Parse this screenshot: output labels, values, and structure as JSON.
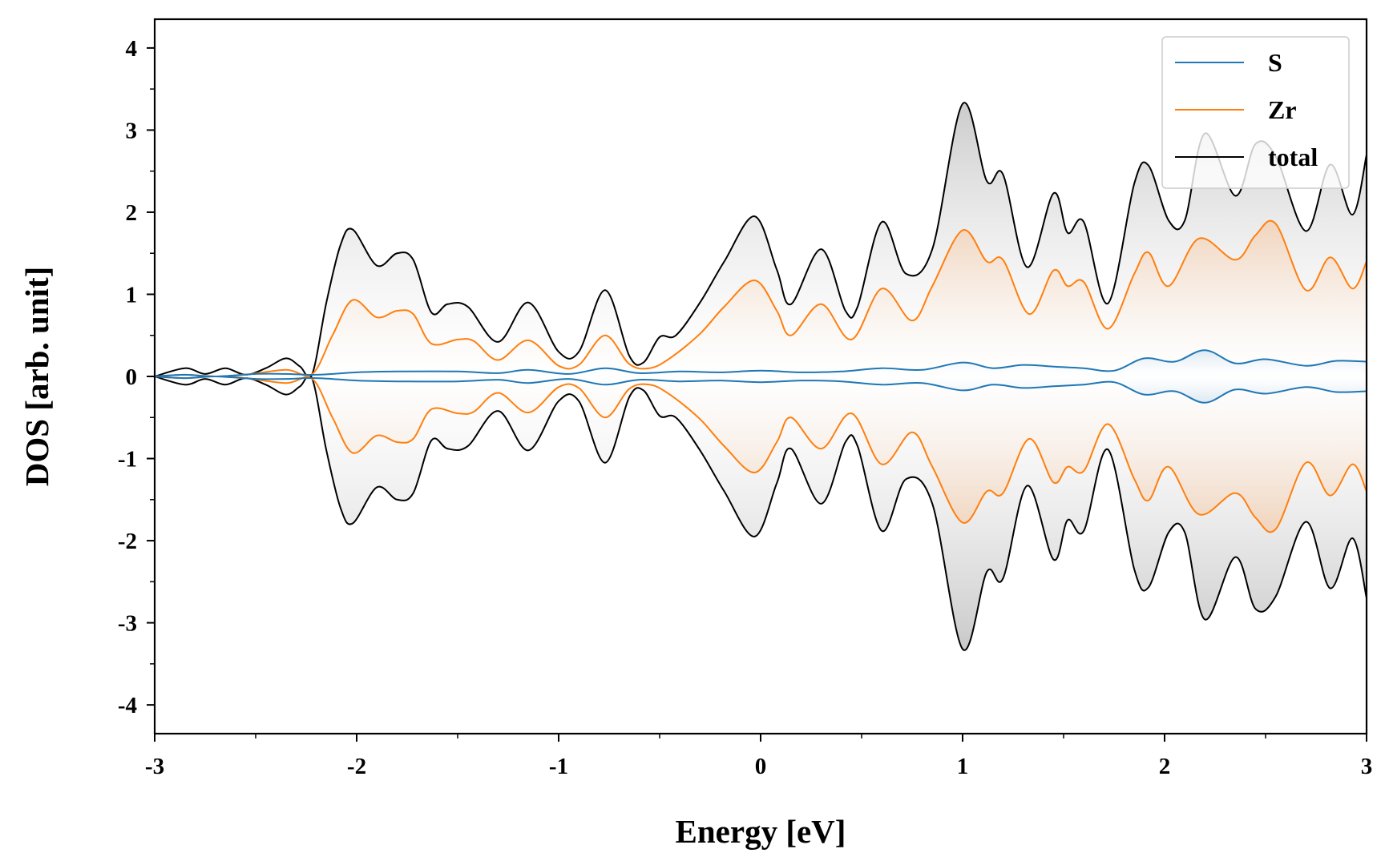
{
  "chart_data": {
    "type": "area",
    "xlabel": "Energy [eV]",
    "ylabel": "DOS [arb. unit]",
    "xlim": [
      -3,
      3
    ],
    "ylim": [
      -4.35,
      4.35
    ],
    "xticks": [
      -3,
      -2,
      -1,
      0,
      1,
      2,
      3
    ],
    "xtick_labels": [
      "-3",
      "-2",
      "-1",
      "0",
      "1",
      "2",
      "3"
    ],
    "yticks": [
      -4,
      -3,
      -2,
      -1,
      0,
      1,
      2,
      3,
      4
    ],
    "ytick_labels": [
      "-4",
      "-3",
      "-2",
      "-1",
      "0",
      "1",
      "2",
      "3",
      "4"
    ],
    "grid": false,
    "legend_position": "top-right",
    "mirrored": true,
    "series": [
      {
        "name": "S",
        "color": "#1f77b4",
        "x": [
          -3.0,
          -2.85,
          -2.7,
          -2.5,
          -2.35,
          -2.2,
          -2.0,
          -1.8,
          -1.5,
          -1.3,
          -1.15,
          -0.95,
          -0.77,
          -0.6,
          -0.4,
          -0.2,
          0.0,
          0.2,
          0.4,
          0.6,
          0.8,
          1.0,
          1.15,
          1.3,
          1.45,
          1.6,
          1.75,
          1.9,
          2.05,
          2.2,
          2.35,
          2.5,
          2.7,
          2.85,
          3.0
        ],
        "values": [
          0.0,
          0.02,
          0.0,
          0.03,
          0.03,
          0.02,
          0.05,
          0.06,
          0.06,
          0.04,
          0.08,
          0.03,
          0.1,
          0.04,
          0.06,
          0.05,
          0.07,
          0.05,
          0.06,
          0.1,
          0.08,
          0.17,
          0.1,
          0.14,
          0.12,
          0.1,
          0.07,
          0.22,
          0.18,
          0.32,
          0.16,
          0.21,
          0.13,
          0.19,
          0.18
        ]
      },
      {
        "name": "Zr",
        "color": "#ff7f0e",
        "x": [
          -3.0,
          -2.85,
          -2.7,
          -2.55,
          -2.35,
          -2.22,
          -2.12,
          -2.02,
          -1.9,
          -1.8,
          -1.72,
          -1.63,
          -1.5,
          -1.42,
          -1.3,
          -1.15,
          -1.0,
          -0.9,
          -0.77,
          -0.65,
          -0.55,
          -0.45,
          -0.3,
          -0.18,
          -0.03,
          0.08,
          0.15,
          0.3,
          0.45,
          0.6,
          0.75,
          0.85,
          1.0,
          1.12,
          1.2,
          1.33,
          1.45,
          1.52,
          1.6,
          1.72,
          1.85,
          1.92,
          2.02,
          2.17,
          2.35,
          2.45,
          2.55,
          2.7,
          2.82,
          2.93,
          3.0
        ],
        "values": [
          0.0,
          0.02,
          0.0,
          0.02,
          0.08,
          0.03,
          0.5,
          0.93,
          0.72,
          0.8,
          0.76,
          0.4,
          0.45,
          0.43,
          0.2,
          0.44,
          0.13,
          0.14,
          0.5,
          0.15,
          0.1,
          0.22,
          0.52,
          0.85,
          1.17,
          0.8,
          0.5,
          0.88,
          0.45,
          1.07,
          0.68,
          1.1,
          1.78,
          1.4,
          1.42,
          0.76,
          1.29,
          1.1,
          1.15,
          0.58,
          1.25,
          1.51,
          1.1,
          1.68,
          1.42,
          1.72,
          1.86,
          1.05,
          1.45,
          1.07,
          1.4
        ]
      },
      {
        "name": "total",
        "color": "#000000",
        "x": [
          -3.0,
          -2.85,
          -2.75,
          -2.65,
          -2.55,
          -2.45,
          -2.35,
          -2.28,
          -2.22,
          -2.15,
          -2.08,
          -2.02,
          -1.9,
          -1.8,
          -1.72,
          -1.63,
          -1.55,
          -1.45,
          -1.3,
          -1.15,
          -1.0,
          -0.9,
          -0.77,
          -0.65,
          -0.58,
          -0.5,
          -0.42,
          -0.3,
          -0.18,
          -0.03,
          0.08,
          0.15,
          0.3,
          0.42,
          0.48,
          0.6,
          0.72,
          0.85,
          1.0,
          1.12,
          1.2,
          1.32,
          1.45,
          1.52,
          1.6,
          1.72,
          1.85,
          1.92,
          2.02,
          2.1,
          2.2,
          2.35,
          2.45,
          2.55,
          2.7,
          2.82,
          2.93,
          3.0
        ],
        "values": [
          0.0,
          0.1,
          0.03,
          0.1,
          0.02,
          0.1,
          0.22,
          0.12,
          0.03,
          0.9,
          1.6,
          1.79,
          1.35,
          1.5,
          1.42,
          0.78,
          0.88,
          0.85,
          0.42,
          0.9,
          0.3,
          0.3,
          1.05,
          0.25,
          0.17,
          0.48,
          0.5,
          0.9,
          1.4,
          1.95,
          1.3,
          0.88,
          1.55,
          0.8,
          0.85,
          1.88,
          1.25,
          1.55,
          3.32,
          2.38,
          2.46,
          1.33,
          2.23,
          1.75,
          1.88,
          0.89,
          2.35,
          2.57,
          1.9,
          1.9,
          2.96,
          2.2,
          2.83,
          2.68,
          1.77,
          2.58,
          1.97,
          2.7
        ]
      }
    ]
  }
}
